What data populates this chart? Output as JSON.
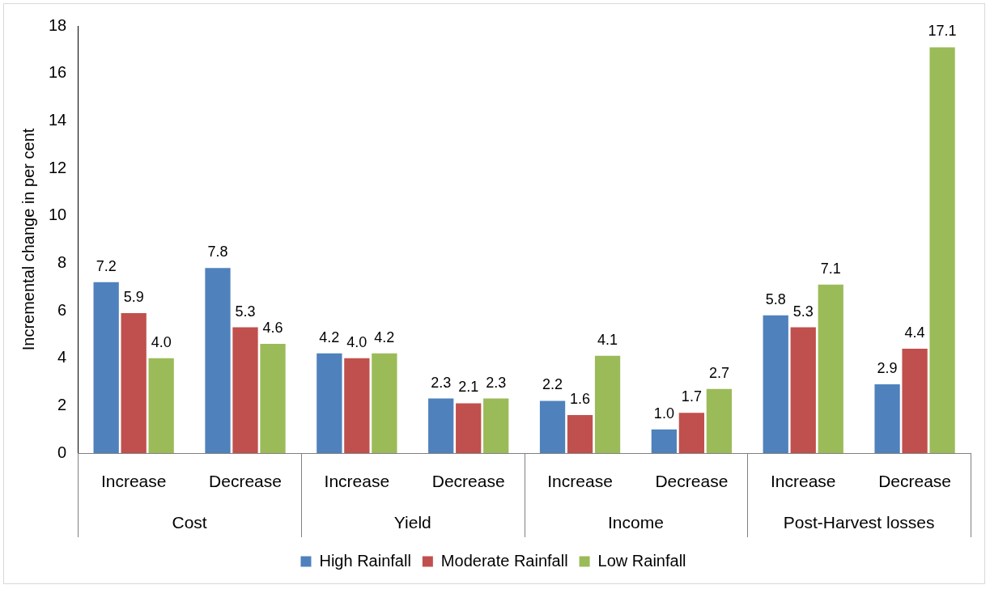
{
  "chart_data": {
    "type": "bar",
    "ylabel": "Incremental change in per cent",
    "categories": [
      "Increase",
      "Decrease",
      "Increase",
      "Decrease",
      "Increase",
      "Decrease",
      "Increase",
      "Decrease"
    ],
    "annotations": [
      "Cost",
      "Yield",
      "Income",
      "Post-Harvest losses"
    ],
    "series": [
      {
        "name": "High Rainfall",
        "color": "#4f81bd",
        "values": [
          7.2,
          7.8,
          4.2,
          2.3,
          2.2,
          1.0,
          5.8,
          2.9
        ],
        "value_labels": [
          "7.2",
          "7.8",
          "4.2",
          "2.3",
          "2.2",
          "1.0",
          "5.8",
          "2.9"
        ]
      },
      {
        "name": "Moderate Rainfall",
        "color": "#c0504d",
        "values": [
          5.9,
          5.3,
          4.0,
          2.1,
          1.6,
          1.7,
          5.3,
          4.4
        ],
        "value_labels": [
          "5.9",
          "5.3",
          "4.0",
          "2.1",
          "1.6",
          "1.7",
          "5.3",
          "4.4"
        ]
      },
      {
        "name": "Low Rainfall",
        "color": "#9bbb59",
        "values": [
          4.0,
          4.6,
          4.2,
          2.3,
          4.1,
          2.7,
          7.1,
          17.1
        ],
        "value_labels": [
          "4.0",
          "4.6",
          "4.2",
          "2.3",
          "4.1",
          "2.7",
          "7.1",
          "17.1"
        ]
      }
    ],
    "ylim": [
      0,
      18
    ],
    "yticks": [
      0,
      2,
      4,
      6,
      8,
      10,
      12,
      14,
      16,
      18
    ],
    "grid": false,
    "legend": "bottom"
  }
}
